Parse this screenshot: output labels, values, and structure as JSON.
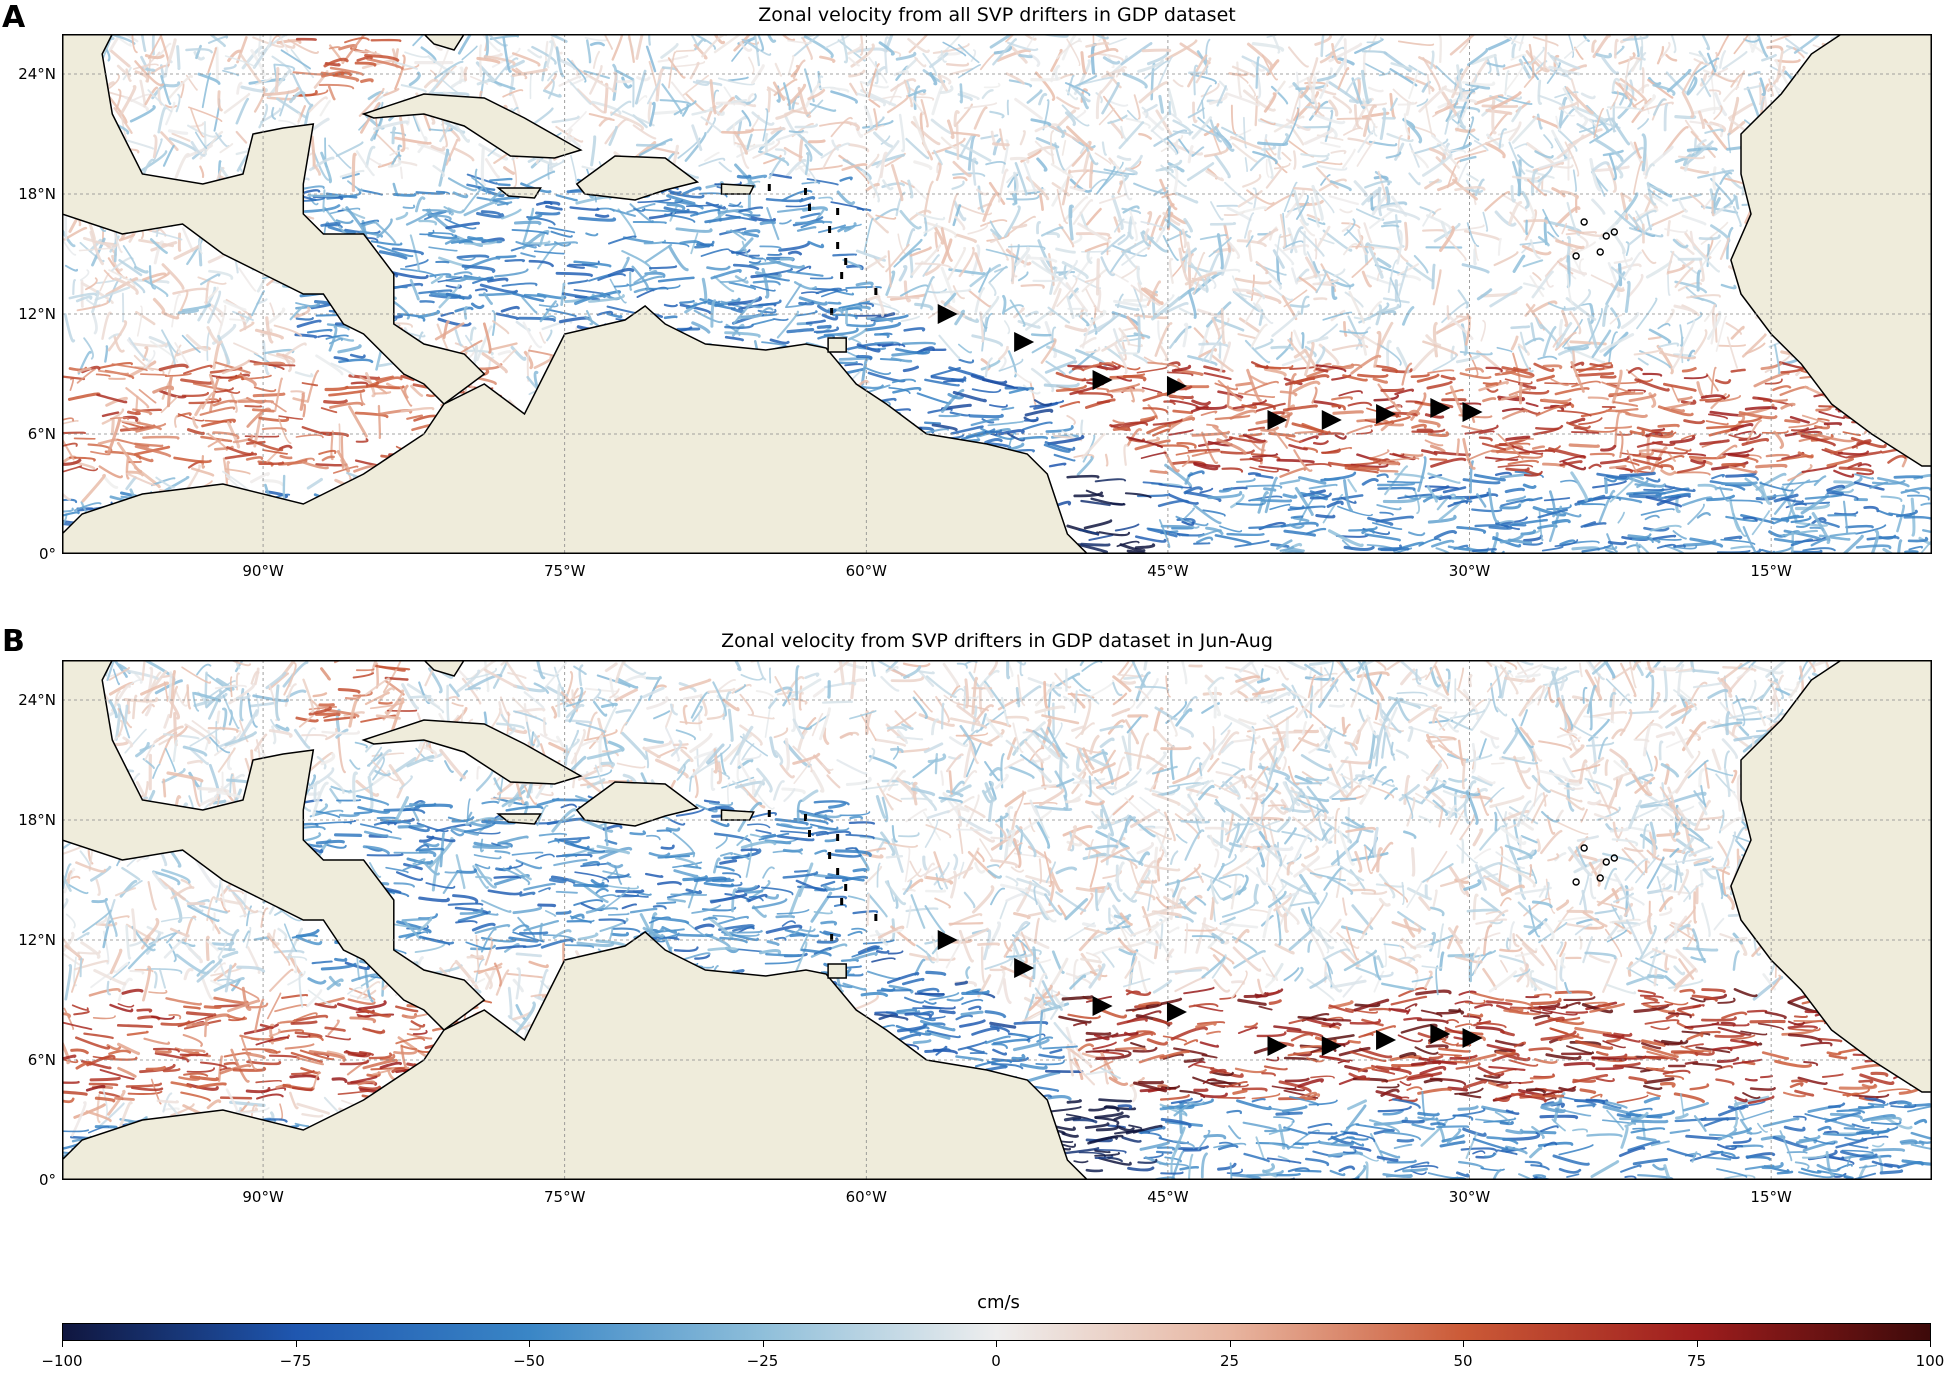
{
  "panels": [
    {
      "letter": "A",
      "title": "Zonal velocity from all SVP drifters in GDP dataset",
      "seed": 11,
      "season": "all"
    },
    {
      "letter": "B",
      "title": "Zonal velocity from SVP drifters in GDP dataset in Jun-Aug",
      "seed": 29,
      "season": "summer"
    }
  ],
  "map": {
    "lon_range": [
      -100,
      -7
    ],
    "lat_range": [
      0,
      26
    ],
    "x_ticks": [
      {
        "lon": -90,
        "label": "90°W"
      },
      {
        "lon": -75,
        "label": "75°W"
      },
      {
        "lon": -60,
        "label": "60°W"
      },
      {
        "lon": -45,
        "label": "45°W"
      },
      {
        "lon": -30,
        "label": "30°W"
      },
      {
        "lon": -15,
        "label": "15°W"
      }
    ],
    "y_ticks": [
      {
        "lat": 0,
        "label": "0°"
      },
      {
        "lat": 6,
        "label": "6°N"
      },
      {
        "lat": 12,
        "label": "12°N"
      },
      {
        "lat": 18,
        "label": "18°N"
      },
      {
        "lat": 24,
        "label": "24°N"
      }
    ],
    "land_color": "#efecdb",
    "gridlines": "dashed",
    "markers": [
      {
        "lon": -56,
        "lat": 12
      },
      {
        "lon": -52.2,
        "lat": 10.6
      },
      {
        "lon": -48.3,
        "lat": 8.7
      },
      {
        "lon": -44.6,
        "lat": 8.4
      },
      {
        "lon": -39.6,
        "lat": 6.7
      },
      {
        "lon": -36.9,
        "lat": 6.7
      },
      {
        "lon": -34.2,
        "lat": 7.0
      },
      {
        "lon": -31.5,
        "lat": 7.3
      },
      {
        "lon": -29.9,
        "lat": 7.1
      }
    ]
  },
  "colorbar": {
    "label": "cm/s",
    "min": -100,
    "max": 100,
    "ticks": [
      {
        "value": -100,
        "label": "−100"
      },
      {
        "value": -75,
        "label": "−75"
      },
      {
        "value": -50,
        "label": "−50"
      },
      {
        "value": -25,
        "label": "−25"
      },
      {
        "value": 0,
        "label": "0"
      },
      {
        "value": 25,
        "label": "25"
      },
      {
        "value": 50,
        "label": "50"
      },
      {
        "value": 75,
        "label": "75"
      },
      {
        "value": 100,
        "label": "100"
      }
    ],
    "colormap": [
      "#10163f",
      "#1f57b0",
      "#3a86c6",
      "#8fbfda",
      "#eeeeee",
      "#e8b5a0",
      "#cb5a37",
      "#9e1d1d",
      "#3d0a0a"
    ]
  }
}
